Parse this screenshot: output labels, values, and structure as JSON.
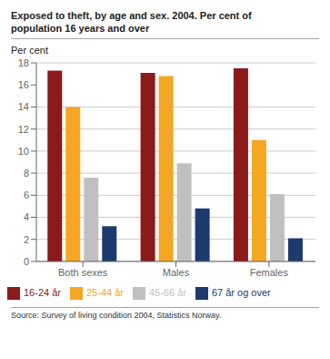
{
  "chart_data": {
    "type": "bar",
    "title": "Exposed to theft, by age and sex. 2004. Per cent of\npopulation 16 years and over",
    "ylabel": "Per cent",
    "categories": [
      "Both sexes",
      "Males",
      "Females"
    ],
    "series": [
      {
        "name": "16-24 år",
        "color": "#8B1A1A",
        "values": [
          17.3,
          17.1,
          17.5
        ]
      },
      {
        "name": "25-44 år",
        "color": "#F5A623",
        "values": [
          14.0,
          16.8,
          11.0
        ]
      },
      {
        "name": "45-66 år",
        "color": "#C0C0C0",
        "values": [
          7.6,
          8.9,
          6.1
        ]
      },
      {
        "name": "67 år og over",
        "color": "#1C3A6E",
        "values": [
          3.2,
          4.8,
          2.1
        ]
      }
    ],
    "ylim": [
      0,
      18
    ],
    "yticks": [
      0,
      2,
      4,
      6,
      8,
      10,
      12,
      14,
      16,
      18
    ],
    "grid": true,
    "legend": "bottom",
    "annotations": [
      "Source: Survey of living condition 2004, Statistics Norway."
    ]
  }
}
